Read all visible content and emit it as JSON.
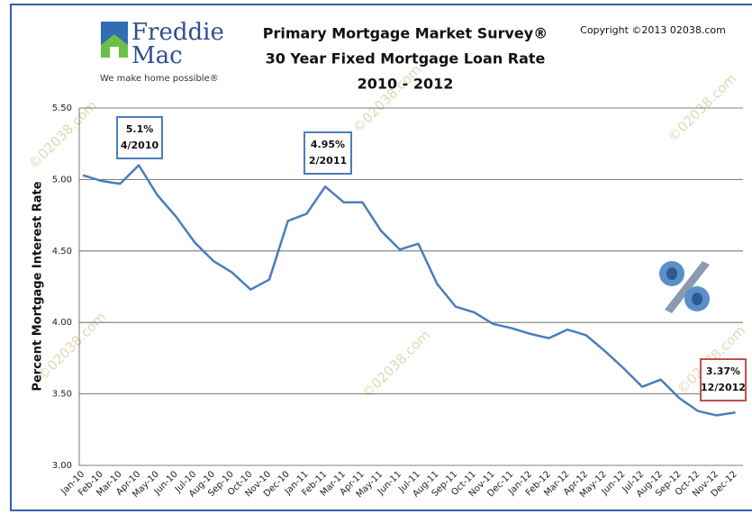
{
  "chart_data": {
    "type": "line",
    "title": [
      "Primary Mortgage Market Survey®",
      "30 Year Fixed Mortgage Loan Rate",
      "2010 - 2012"
    ],
    "copyright": "Copyright ©2013 02038.com",
    "logo": {
      "name1": "Freddie",
      "name2": "Mac",
      "tagline": "We make home possible®"
    },
    "watermark": "©02038.com",
    "y_label": "Percent Mortgage Interest Rate",
    "categories": [
      "Jan-10",
      "Feb-10",
      "Mar-10",
      "Apr-10",
      "May-10",
      "Jun-10",
      "Jul-10",
      "Aug-10",
      "Sep-10",
      "Oct-10",
      "Nov-10",
      "Dec-10",
      "Jan-11",
      "Feb-11",
      "Mar-11",
      "Apr-11",
      "May-11",
      "Jun-11",
      "Jul-11",
      "Aug-11",
      "Sep-11",
      "Oct-11",
      "Nov-11",
      "Dec-11",
      "Jan-12",
      "Feb-12",
      "Mar-12",
      "Apr-12",
      "May-12",
      "Jun-12",
      "Jul-12",
      "Aug-12",
      "Sep-12",
      "Oct-12",
      "Nov-12",
      "Dec-12"
    ],
    "series": [
      {
        "name": "30 Year Fixed",
        "color": "#4a7ebb",
        "values": [
          5.03,
          4.99,
          4.97,
          5.1,
          4.89,
          4.74,
          4.56,
          4.43,
          4.35,
          4.23,
          4.3,
          4.71,
          4.76,
          4.95,
          4.84,
          4.84,
          4.64,
          4.51,
          4.55,
          4.27,
          4.11,
          4.07,
          3.99,
          3.96,
          3.92,
          3.89,
          3.95,
          3.91,
          3.8,
          3.68,
          3.55,
          3.6,
          3.47,
          3.38,
          3.35,
          3.37
        ]
      }
    ],
    "ylim": [
      3.0,
      5.5
    ],
    "yticks": [
      {
        "value": 3.0,
        "label": "3.00"
      },
      {
        "value": 3.5,
        "label": "3.50"
      },
      {
        "value": 4.0,
        "label": "4.00"
      },
      {
        "value": 4.5,
        "label": "4.50"
      },
      {
        "value": 5.0,
        "label": "5.00"
      },
      {
        "value": 5.5,
        "label": "5.50"
      }
    ],
    "grid": true,
    "annotations": [
      {
        "value": "5.1%",
        "date": "4/2010",
        "color": "#4a7ebb"
      },
      {
        "value": "4.95%",
        "date": "2/2011",
        "color": "#4a7ebb"
      },
      {
        "value": "3.37%",
        "date": "12/2012",
        "color": "#c0504d"
      }
    ]
  }
}
